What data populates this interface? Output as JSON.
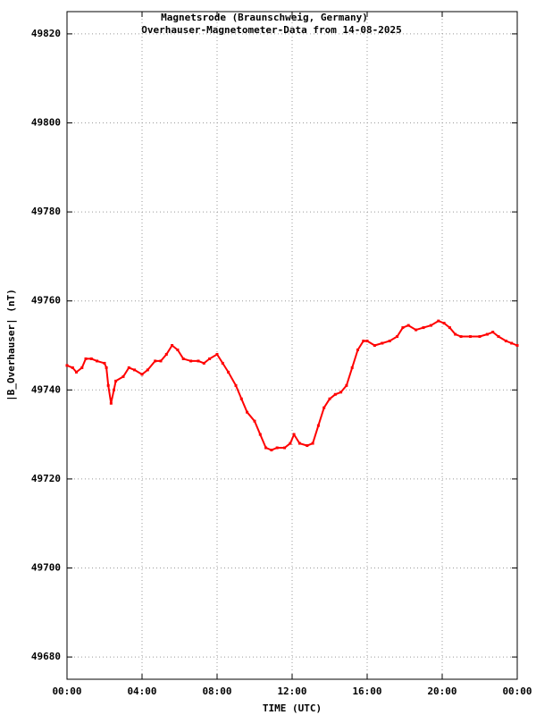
{
  "chart_data": {
    "type": "scatter",
    "title": "Magnetsrode (Braunschweig, Germany)",
    "subtitle": "Overhauser-Magnetometer-Data from 14-08-2025",
    "x_label": "TIME (UTC)",
    "y_label": "|B_Overhauser| (nT)",
    "color": "#ff0000",
    "grid": true,
    "xlim": [
      0,
      24
    ],
    "xticks": [
      {
        "value": 0,
        "label": "00:00"
      },
      {
        "value": 4,
        "label": "04:00"
      },
      {
        "value": 8,
        "label": "08:00"
      },
      {
        "value": 12,
        "label": "12:00"
      },
      {
        "value": 16,
        "label": "16:00"
      },
      {
        "value": 20,
        "label": "20:00"
      },
      {
        "value": 24,
        "label": "00:00"
      }
    ],
    "ylim": [
      49675,
      49825
    ],
    "yticks": [
      49680,
      49700,
      49720,
      49740,
      49760,
      49780,
      49800,
      49820
    ],
    "x": [
      0,
      0.3,
      0.5,
      0.8,
      1.0,
      1.3,
      1.6,
      2.0,
      2.1,
      2.2,
      2.35,
      2.5,
      2.6,
      3.0,
      3.3,
      3.6,
      4.0,
      4.3,
      4.7,
      5.0,
      5.3,
      5.6,
      5.9,
      6.2,
      6.6,
      7.0,
      7.3,
      7.6,
      8.0,
      8.3,
      8.6,
      9.0,
      9.3,
      9.6,
      10.0,
      10.3,
      10.6,
      10.9,
      11.2,
      11.6,
      11.9,
      12.1,
      12.4,
      12.8,
      13.1,
      13.4,
      13.7,
      14.0,
      14.3,
      14.6,
      14.9,
      15.2,
      15.5,
      15.8,
      16.0,
      16.4,
      16.8,
      17.2,
      17.6,
      17.9,
      18.2,
      18.6,
      19.0,
      19.4,
      19.8,
      20.1,
      20.4,
      20.7,
      21.0,
      21.5,
      22.0,
      22.4,
      22.7,
      23.0,
      23.4,
      23.7,
      24.0
    ],
    "values": [
      49745.5,
      49745,
      49744,
      49745,
      49747,
      49747,
      49746.5,
      49746,
      49745,
      49741,
      49737,
      49740,
      49742,
      49743,
      49745,
      49744.5,
      49743.5,
      49744.5,
      49746.5,
      49746.5,
      49748,
      49750,
      49749,
      49747,
      49746.5,
      49746.5,
      49746,
      49747,
      49748,
      49746,
      49744,
      49741,
      49738,
      49735,
      49733,
      49730,
      49727,
      49726.5,
      49727,
      49727,
      49728,
      49730,
      49728,
      49727.5,
      49728,
      49732,
      49736,
      49738,
      49739,
      49739.5,
      49741,
      49745,
      49749,
      49751,
      49751,
      49750,
      49750.5,
      49751,
      49752,
      49754,
      49754.5,
      49753.5,
      49754,
      49754.5,
      49755.5,
      49755,
      49754,
      49752.5,
      49752,
      49752,
      49752,
      49752.5,
      49753,
      49752,
      49751,
      49750.5,
      49750
    ]
  }
}
